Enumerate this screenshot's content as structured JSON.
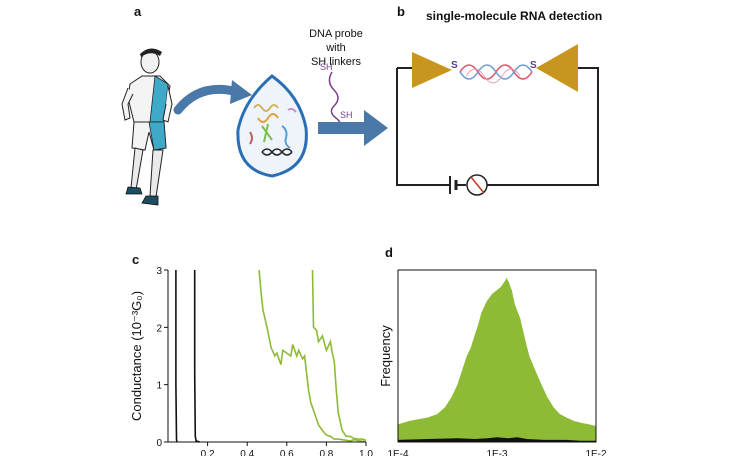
{
  "panels": {
    "a": {
      "letter": "a",
      "probe_label_line1": "DNA probe with",
      "probe_label_line2": "SH linkers",
      "sh_top": "SH",
      "sh_bottom": "SH"
    },
    "b": {
      "letter": "b",
      "title": "single-molecule RNA detection",
      "s_left": "S",
      "s_right": "S"
    },
    "c": {
      "letter": "c"
    },
    "d": {
      "letter": "d"
    }
  },
  "colors": {
    "green_trace": "#8dbb35",
    "black_trace": "#111111",
    "electrode": "#c8961e",
    "arrow_blue": "#4a78a8",
    "helix_red": "#d9556a",
    "helix_blue": "#6f9bd1",
    "droplet_outline": "#2a6fb5",
    "sh_purple": "#7b3f8c",
    "shirt_blue": "#3fa9c9"
  },
  "chart_data": [
    {
      "type": "line",
      "ylabel": "Conductance (10⁻³G₀)",
      "xlabel": "",
      "xlim": [
        0.0,
        1.0
      ],
      "ylim": [
        0,
        3
      ],
      "x_ticks": [
        "0.2",
        "0.4",
        "0.6",
        "0.8",
        "1.0"
      ],
      "x_tick_values": [
        0.2,
        0.4,
        0.6,
        0.8,
        1.0
      ],
      "y_ticks": [
        "0",
        "1",
        "2",
        "3"
      ],
      "y_tick_values": [
        0,
        1,
        2,
        3
      ],
      "series": [
        {
          "color": "#111111",
          "x": [
            0.04,
            0.04,
            0.043,
            0.045
          ],
          "y": [
            3.0,
            1.0,
            0.05,
            0.0
          ]
        },
        {
          "color": "#111111",
          "x": [
            0.135,
            0.135,
            0.138,
            0.142,
            0.16
          ],
          "y": [
            3.0,
            1.2,
            0.1,
            0.02,
            0.0
          ]
        },
        {
          "color": "#8dbb35",
          "x": [
            0.46,
            0.47,
            0.48,
            0.5,
            0.52,
            0.54,
            0.55,
            0.57,
            0.58,
            0.6,
            0.62,
            0.63,
            0.65,
            0.66,
            0.68,
            0.69,
            0.7,
            0.71,
            0.72,
            0.74,
            0.76,
            0.78,
            0.8,
            0.82,
            0.84,
            0.86,
            0.88,
            0.9,
            0.92,
            0.94,
            0.97,
            1.0
          ],
          "y": [
            3.0,
            2.6,
            2.3,
            2.0,
            1.65,
            1.5,
            1.55,
            1.35,
            1.6,
            1.55,
            1.5,
            1.7,
            1.5,
            1.6,
            1.45,
            1.5,
            1.2,
            0.9,
            0.7,
            0.5,
            0.3,
            0.2,
            0.12,
            0.1,
            0.05,
            0.05,
            0.04,
            0.03,
            0.02,
            0.04,
            0.02,
            0.0
          ]
        },
        {
          "color": "#8dbb35",
          "x": [
            0.73,
            0.735,
            0.75,
            0.76,
            0.78,
            0.8,
            0.82,
            0.83,
            0.84,
            0.85,
            0.86,
            0.87,
            0.88,
            0.9,
            0.92,
            0.94,
            0.96,
            0.98,
            1.0
          ],
          "y": [
            3.0,
            2.0,
            1.95,
            1.75,
            1.85,
            1.6,
            1.75,
            1.55,
            1.4,
            0.9,
            0.5,
            0.35,
            0.2,
            0.1,
            0.1,
            0.06,
            0.05,
            0.05,
            0.03
          ]
        }
      ]
    },
    {
      "type": "area",
      "ylabel": "Frequency",
      "xlabel": "",
      "xscale": "log",
      "xlim": [
        0.0001,
        0.01
      ],
      "ylim": [
        0,
        1
      ],
      "x_ticks": [
        "1E-4",
        "1E-3",
        "1E-2"
      ],
      "x_tick_values": [
        0.0001,
        0.001,
        0.01
      ],
      "series": [
        {
          "color": "#8dbb35",
          "x": [
            0.0001,
            0.00013,
            0.00016,
            0.0002,
            0.00025,
            0.0003,
            0.00035,
            0.0004,
            0.00045,
            0.0005,
            0.00055,
            0.0006,
            0.00065,
            0.0007,
            0.0008,
            0.0009,
            0.001,
            0.0011,
            0.0012,
            0.00125,
            0.0013,
            0.0014,
            0.0015,
            0.0017,
            0.0019,
            0.0021,
            0.0024,
            0.0028,
            0.0032,
            0.0037,
            0.0043,
            0.005,
            0.006,
            0.007,
            0.0085,
            0.01
          ],
          "y": [
            0.1,
            0.12,
            0.13,
            0.14,
            0.16,
            0.2,
            0.26,
            0.33,
            0.42,
            0.5,
            0.55,
            0.62,
            0.68,
            0.75,
            0.82,
            0.86,
            0.88,
            0.9,
            0.93,
            0.95,
            0.93,
            0.88,
            0.8,
            0.72,
            0.6,
            0.5,
            0.42,
            0.33,
            0.26,
            0.2,
            0.16,
            0.14,
            0.12,
            0.11,
            0.1,
            0.09
          ]
        },
        {
          "color": "#111111",
          "x": [
            0.0001,
            0.0002,
            0.0004,
            0.0006,
            0.0008,
            0.001,
            0.0013,
            0.0016,
            0.002,
            0.003,
            0.005,
            0.007,
            0.01
          ],
          "y": [
            0.01,
            0.015,
            0.02,
            0.015,
            0.02,
            0.025,
            0.02,
            0.025,
            0.015,
            0.01,
            0.01,
            0.005,
            0.005
          ]
        }
      ]
    }
  ]
}
